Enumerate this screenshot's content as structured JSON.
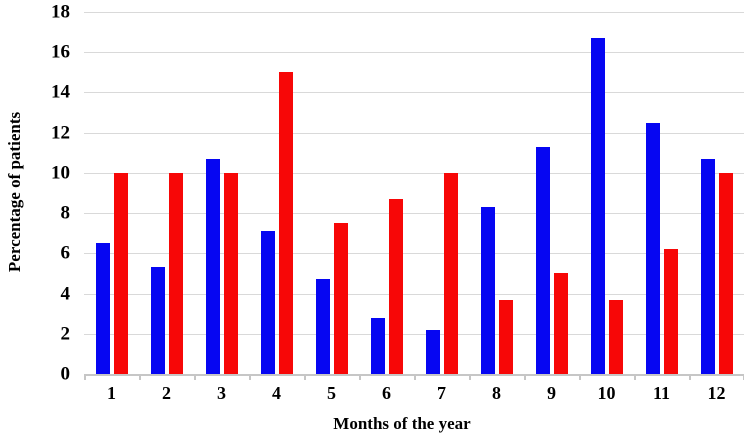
{
  "figure": {
    "background": "#ffffff"
  },
  "chart_data": {
    "type": "bar",
    "title": "",
    "xlabel": "Months of the year",
    "ylabel": "Percentage of patients",
    "categories": [
      "1",
      "2",
      "3",
      "4",
      "5",
      "6",
      "7",
      "8",
      "9",
      "10",
      "11",
      "12"
    ],
    "series": [
      {
        "name": "blue",
        "color": "#0606f2",
        "values": [
          6.5,
          5.3,
          10.7,
          7.1,
          4.7,
          2.8,
          2.2,
          8.3,
          11.3,
          16.7,
          12.5,
          10.7
        ]
      },
      {
        "name": "red",
        "color": "#f70707",
        "values": [
          10,
          10,
          10,
          15,
          7.5,
          8.7,
          10,
          3.7,
          5,
          3.7,
          6.2,
          10
        ]
      }
    ],
    "ylim": [
      0,
      18
    ],
    "ytick_step": 2,
    "yticks": [
      "0",
      "2",
      "4",
      "6",
      "8",
      "10",
      "12",
      "14",
      "16",
      "18"
    ],
    "grid": true,
    "legend": "none",
    "gridline_color": "#d9d9d9",
    "axis_color": "#c6c6c6",
    "text_color": "#000000"
  }
}
